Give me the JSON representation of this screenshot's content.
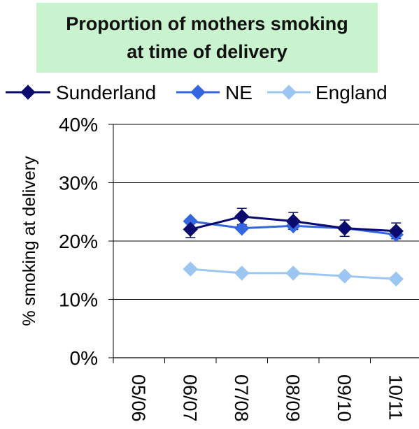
{
  "chart_data": {
    "type": "line",
    "title_lines": [
      "Proportion of mothers smoking",
      "at time of delivery"
    ],
    "ylabel": "% smoking at delivery",
    "xlabel": "",
    "categories": [
      "05/06",
      "06/07",
      "07/08",
      "08/09",
      "09/10",
      "10/11"
    ],
    "ylim": [
      0,
      40
    ],
    "y_ticks": [
      "0%",
      "10%",
      "20%",
      "30%",
      "40%"
    ],
    "y_tick_values": [
      0,
      10,
      20,
      30,
      40
    ],
    "grid": true,
    "legend_position": "top",
    "series": [
      {
        "name": "Sunderland",
        "color": "#0a0a6e",
        "marker": "diamond",
        "values": [
          null,
          22.0,
          24.2,
          23.4,
          22.2,
          21.7
        ],
        "error_low": [
          null,
          20.6,
          22.8,
          22.0,
          20.8,
          20.4
        ],
        "error_high": [
          null,
          23.4,
          25.6,
          24.9,
          23.6,
          23.1
        ]
      },
      {
        "name": "NE",
        "color": "#3466e0",
        "marker": "diamond",
        "values": [
          null,
          23.4,
          22.2,
          22.6,
          22.2,
          21.1
        ]
      },
      {
        "name": "England",
        "color": "#9cc6f2",
        "marker": "diamond",
        "values": [
          null,
          15.2,
          14.5,
          14.5,
          14.0,
          13.5
        ]
      }
    ]
  }
}
